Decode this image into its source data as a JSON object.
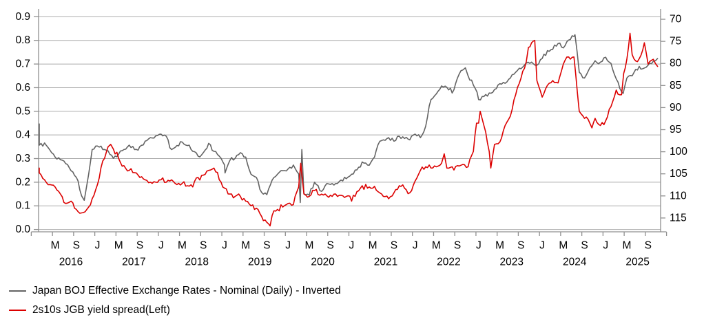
{
  "chart_data": {
    "type": "line",
    "title": "",
    "x_axis": {
      "start_year": 2016,
      "start_month": 1,
      "months": 118,
      "month_tick_labels": [
        "M",
        "S",
        "J",
        "M",
        "S",
        "J",
        "M",
        "S",
        "J",
        "M",
        "S",
        "J",
        "M",
        "S",
        "J",
        "M",
        "S",
        "J",
        "M",
        "S",
        "J",
        "M",
        "S",
        "J",
        "M",
        "S",
        "J",
        "M",
        "S"
      ],
      "year_labels": [
        "2016",
        "2017",
        "2018",
        "2019",
        "2020",
        "2021",
        "2022",
        "2023",
        "2024",
        "2025"
      ],
      "grid": "horizontal-only"
    },
    "left_axis": {
      "tick_labels": [
        "0.9",
        "0.8",
        "0.7",
        "0.6",
        "0.5",
        "0.4",
        "0.3",
        "0.2",
        "0.1",
        "0.0"
      ],
      "min": 0.0,
      "max": 0.9,
      "belongs_to": "2s10s JGB yield spread"
    },
    "right_axis": {
      "tick_labels": [
        "70",
        "75",
        "80",
        "85",
        "90",
        "95",
        "100",
        "105",
        "110",
        "115"
      ],
      "min": 70,
      "max": 115,
      "inverted": true,
      "belongs_to": "BOJ effective exchange rate index"
    },
    "series": [
      {
        "name": "Japan BOJ Effective Exchange Rates - Nominal (Daily) - Inverted",
        "axis": "right",
        "color": "#636363",
        "line_width": 1.6,
        "jitter": 0.55,
        "seed": 7,
        "monthly_values": [
          93.7,
          98.5,
          98.0,
          99.6,
          101.2,
          101.8,
          102.7,
          104.3,
          105.8,
          110.0,
          107.5,
          99.5,
          98.7,
          99.5,
          99.8,
          101.5,
          100.5,
          99.5,
          98.5,
          99.5,
          98.8,
          97.6,
          96.8,
          96.4,
          96.0,
          96.5,
          99.5,
          98.6,
          97.8,
          98.6,
          99.9,
          101.0,
          100.2,
          98.1,
          99.9,
          101.0,
          103.0,
          102.0,
          101.5,
          100.2,
          101.2,
          105.1,
          105.8,
          109.2,
          109.7,
          106.4,
          105.1,
          104.3,
          103.9,
          103.0,
          105.0,
          109.5,
          109.8,
          106.9,
          108.8,
          107.7,
          107.4,
          107.2,
          106.4,
          106.1,
          105.1,
          104.1,
          102.3,
          103.0,
          101.7,
          98.4,
          97.3,
          96.8,
          97.6,
          96.5,
          97.0,
          97.3,
          96.0,
          96.8,
          94.2,
          88.2,
          86.9,
          85.1,
          85.4,
          86.7,
          83.3,
          81.5,
          82.8,
          84.9,
          88.2,
          87.5,
          86.7,
          85.9,
          84.6,
          84.5,
          83.3,
          82.0,
          81.2,
          79.9,
          79.7,
          80.4,
          78.9,
          77.1,
          76.8,
          75.5,
          76.5,
          74.7,
          73.9,
          82.0,
          83.3,
          81.0,
          79.4,
          79.7,
          78.6,
          80.0,
          83.5,
          86.4,
          83.3,
          82.8,
          81.5,
          81.2,
          80.4,
          79.5
        ],
        "extra_points": [
          {
            "m": 9.5,
            "v": 111.0
          },
          {
            "m": 36.1,
            "v": 104.8
          },
          {
            "m": 50.3,
            "v": 111.5
          },
          {
            "m": 50.6,
            "v": 99.5
          },
          {
            "m": 81.5,
            "v": 81.0
          },
          {
            "m": 83.7,
            "v": 86.5
          },
          {
            "m": 102.2,
            "v": 73.5
          },
          {
            "m": 111.3,
            "v": 86.8
          },
          {
            "m": 117.8,
            "v": 78.9
          }
        ]
      },
      {
        "name": "2s10s JGB yield spread(Left)",
        "axis": "left",
        "color": "#dc0000",
        "line_width": 1.6,
        "jitter": 0.012,
        "seed": 13,
        "monthly_values": [
          0.26,
          0.24,
          0.21,
          0.19,
          0.18,
          0.15,
          0.11,
          0.12,
          0.085,
          0.07,
          0.085,
          0.13,
          0.19,
          0.29,
          0.35,
          0.34,
          0.3,
          0.27,
          0.25,
          0.24,
          0.22,
          0.21,
          0.2,
          0.2,
          0.21,
          0.2,
          0.21,
          0.19,
          0.195,
          0.185,
          0.18,
          0.22,
          0.23,
          0.25,
          0.26,
          0.21,
          0.175,
          0.15,
          0.14,
          0.14,
          0.12,
          0.1,
          0.09,
          0.055,
          0.03,
          0.06,
          0.085,
          0.095,
          0.11,
          0.105,
          0.18,
          0.15,
          0.14,
          0.165,
          0.145,
          0.15,
          0.145,
          0.15,
          0.145,
          0.14,
          0.12,
          0.16,
          0.185,
          0.175,
          0.175,
          0.16,
          0.14,
          0.13,
          0.155,
          0.185,
          0.175,
          0.155,
          0.205,
          0.25,
          0.265,
          0.26,
          0.265,
          0.28,
          0.26,
          0.265,
          0.27,
          0.275,
          0.265,
          0.33,
          0.45,
          0.44,
          0.33,
          0.36,
          0.37,
          0.44,
          0.48,
          0.57,
          0.64,
          0.71,
          0.79,
          0.63,
          0.56,
          0.61,
          0.63,
          0.62,
          0.7,
          0.73,
          0.73,
          0.5,
          0.47,
          0.45,
          0.47,
          0.44,
          0.46,
          0.52,
          0.59,
          0.57,
          0.72,
          0.74,
          0.71,
          0.76,
          0.7,
          0.72
        ],
        "extra_points": [
          {
            "m": 14.5,
            "v": 0.36
          },
          {
            "m": 44.6,
            "v": 0.015
          },
          {
            "m": 50.4,
            "v": 0.28
          },
          {
            "m": 77.5,
            "v": 0.32
          },
          {
            "m": 83.6,
            "v": 0.45
          },
          {
            "m": 84.3,
            "v": 0.5
          },
          {
            "m": 86.3,
            "v": 0.26
          },
          {
            "m": 93.4,
            "v": 0.77
          },
          {
            "m": 94.6,
            "v": 0.8
          },
          {
            "m": 105.4,
            "v": 0.43
          },
          {
            "m": 111.4,
            "v": 0.66
          },
          {
            "m": 112.6,
            "v": 0.83
          },
          {
            "m": 115.3,
            "v": 0.79
          },
          {
            "m": 117.8,
            "v": 0.69
          }
        ]
      }
    ],
    "legend": [
      {
        "label": "Japan BOJ Effective Exchange Rates - Nominal (Daily) - Inverted",
        "color": "#636363"
      },
      {
        "label": "2s10s JGB yield spread(Left)",
        "color": "#dc0000"
      }
    ],
    "colors": {
      "grid": "#ababab",
      "axis": "#8f8f8f",
      "text": "#000000",
      "background": "#ffffff"
    }
  }
}
